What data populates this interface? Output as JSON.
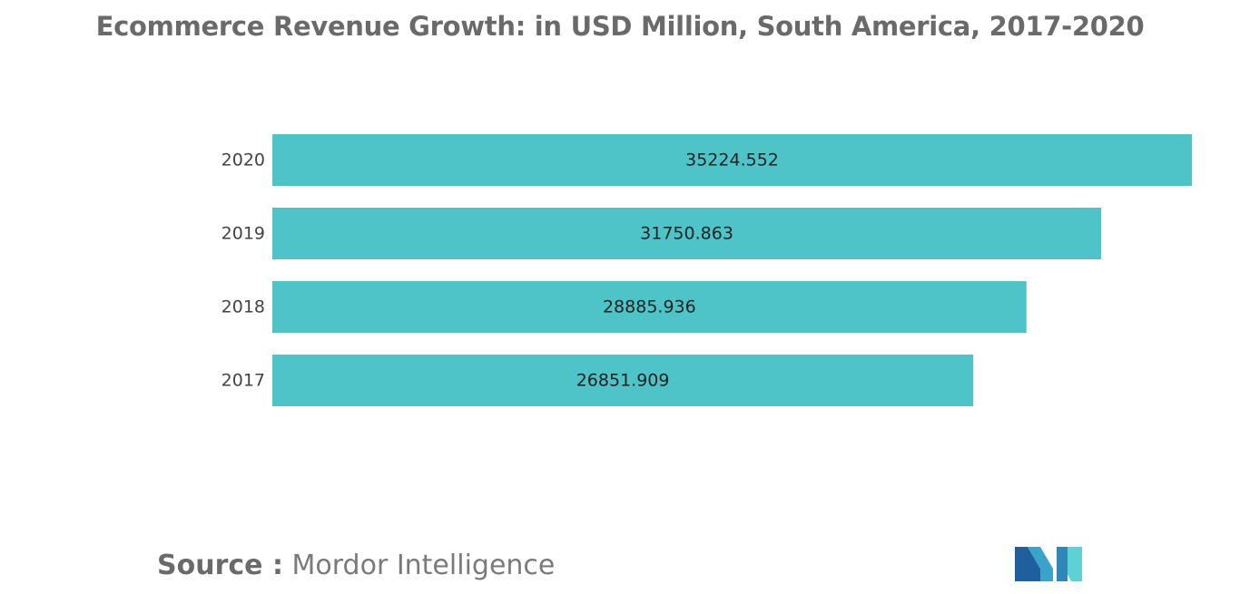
{
  "title": "Ecommerce Revenue Growth: in USD Million, South America, 2017-2020",
  "source": {
    "label": "Source :",
    "text": "Mordor Intelligence"
  },
  "logo": {
    "icon": "mordor-intelligence-logo",
    "colors": [
      "#1f5f9e",
      "#3aa3c9",
      "#5fd0d6"
    ]
  },
  "colors": {
    "bar": "#4fc4c8"
  },
  "chart_data": {
    "type": "bar",
    "orientation": "horizontal",
    "title": "Ecommerce Revenue Growth: in USD Million, South America, 2017-2020",
    "categories": [
      "2020",
      "2019",
      "2018",
      "2017"
    ],
    "values": [
      35224.552,
      31750.863,
      28885.936,
      26851.909
    ],
    "value_labels": [
      "35224.552",
      "31750.863",
      "28885.936",
      "26851.909"
    ],
    "xlim": [
      0,
      35224.552
    ],
    "grid": false,
    "legend": "none"
  }
}
